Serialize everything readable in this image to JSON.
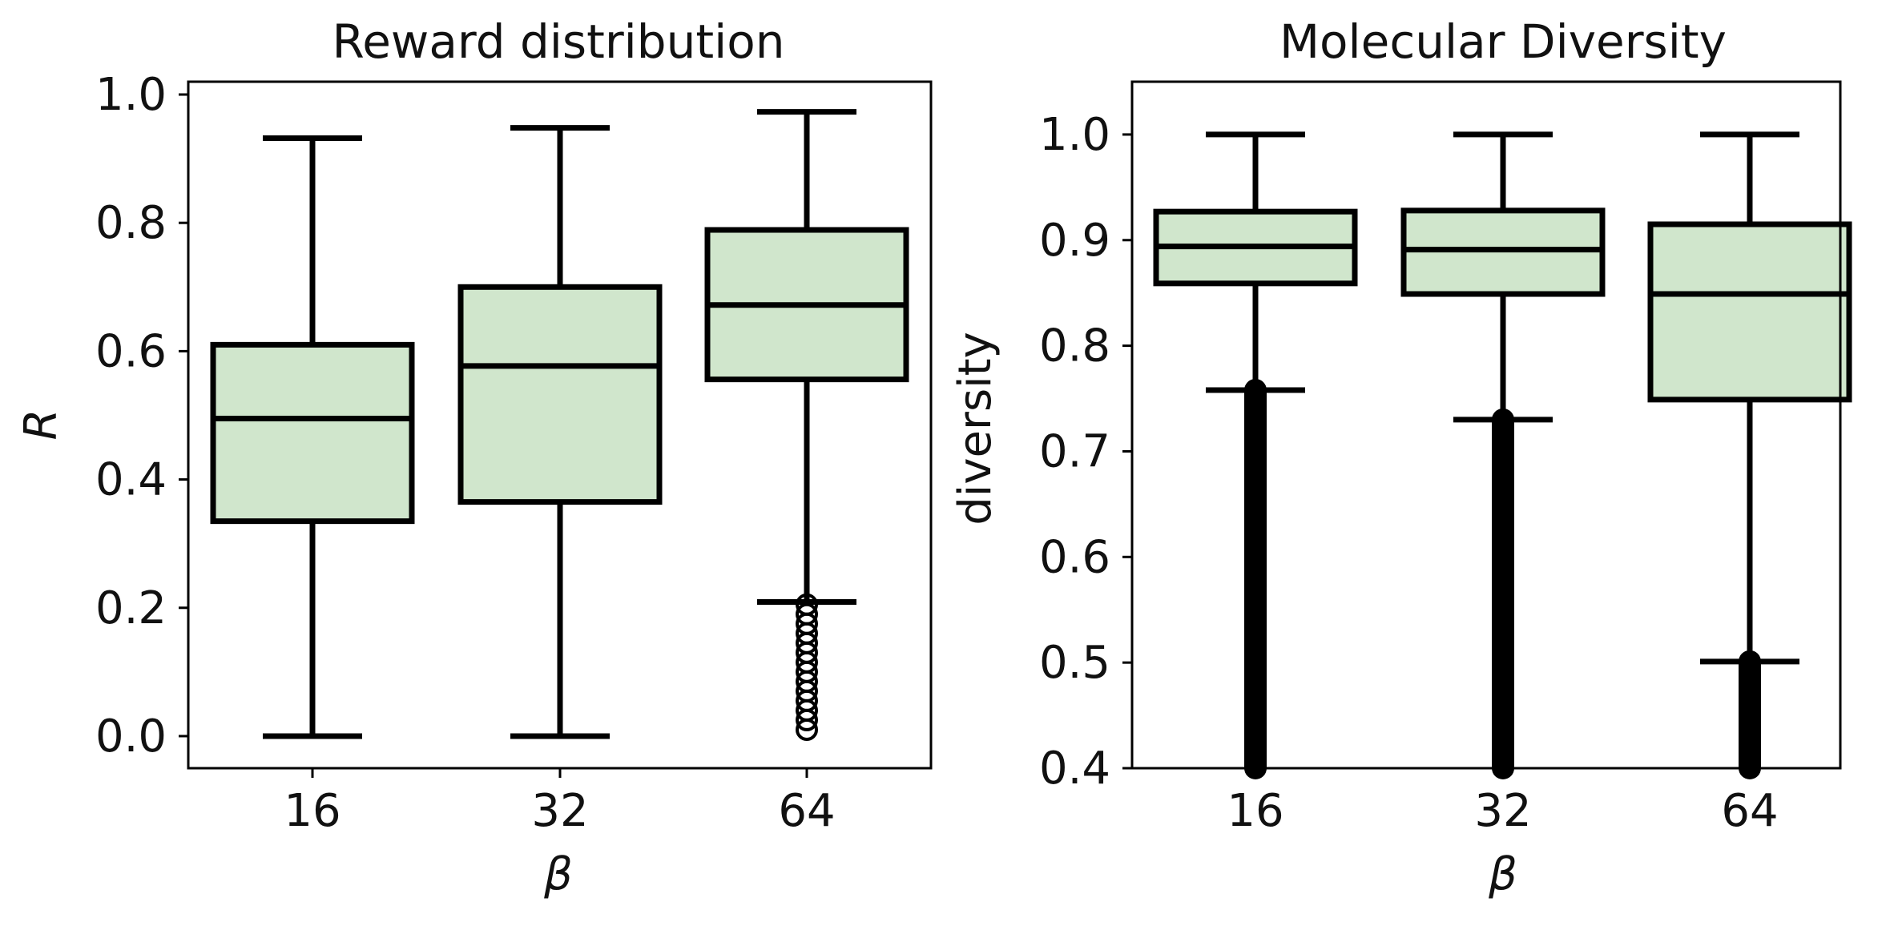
{
  "chart_data": [
    {
      "type": "box",
      "title": "Reward distribution",
      "xlabel": "β",
      "ylabel": "R",
      "categories": [
        "16",
        "32",
        "64"
      ],
      "ylim": [
        -0.05,
        1.02
      ],
      "yticks": [
        0.0,
        0.2,
        0.4,
        0.6,
        0.8,
        1.0
      ],
      "ytick_labels": [
        "0.0",
        "0.2",
        "0.4",
        "0.6",
        "0.8",
        "1.0"
      ],
      "box_color": "#d0e6cc",
      "line_color": "#000000",
      "boxes": [
        {
          "category": "16",
          "whisker_low": 0.0,
          "q1": 0.335,
          "median": 0.495,
          "q3": 0.61,
          "whisker_high": 0.932,
          "outliers": []
        },
        {
          "category": "32",
          "whisker_low": 0.0,
          "q1": 0.365,
          "median": 0.577,
          "q3": 0.7,
          "whisker_high": 0.948,
          "outliers": []
        },
        {
          "category": "64",
          "whisker_low": 0.209,
          "q1": 0.556,
          "median": 0.672,
          "q3": 0.789,
          "whisker_high": 0.973,
          "outliers": [
            0.205,
            0.19,
            0.175,
            0.16,
            0.145,
            0.13,
            0.115,
            0.1,
            0.085,
            0.07,
            0.055,
            0.04,
            0.025,
            0.01
          ]
        }
      ]
    },
    {
      "type": "box",
      "title": "Molecular Diversity",
      "xlabel": "β",
      "ylabel": "diversity",
      "categories": [
        "16",
        "32",
        "64"
      ],
      "ylim": [
        0.4,
        1.05
      ],
      "yticks": [
        0.4,
        0.5,
        0.6,
        0.7,
        0.8,
        0.9,
        1.0
      ],
      "ytick_labels": [
        "0.4",
        "0.5",
        "0.6",
        "0.7",
        "0.8",
        "0.9",
        "1.0"
      ],
      "box_color": "#d0e6cc",
      "line_color": "#000000",
      "boxes": [
        {
          "category": "16",
          "whisker_low": 0.758,
          "q1": 0.859,
          "median": 0.894,
          "q3": 0.927,
          "whisker_high": 1.0,
          "outlier_range": [
            0.4,
            0.758
          ]
        },
        {
          "category": "32",
          "whisker_low": 0.73,
          "q1": 0.849,
          "median": 0.891,
          "q3": 0.928,
          "whisker_high": 1.0,
          "outlier_range": [
            0.4,
            0.73
          ]
        },
        {
          "category": "64",
          "whisker_low": 0.501,
          "q1": 0.749,
          "median": 0.849,
          "q3": 0.915,
          "whisker_high": 1.0,
          "outlier_range": [
            0.4,
            0.501
          ]
        }
      ]
    }
  ]
}
